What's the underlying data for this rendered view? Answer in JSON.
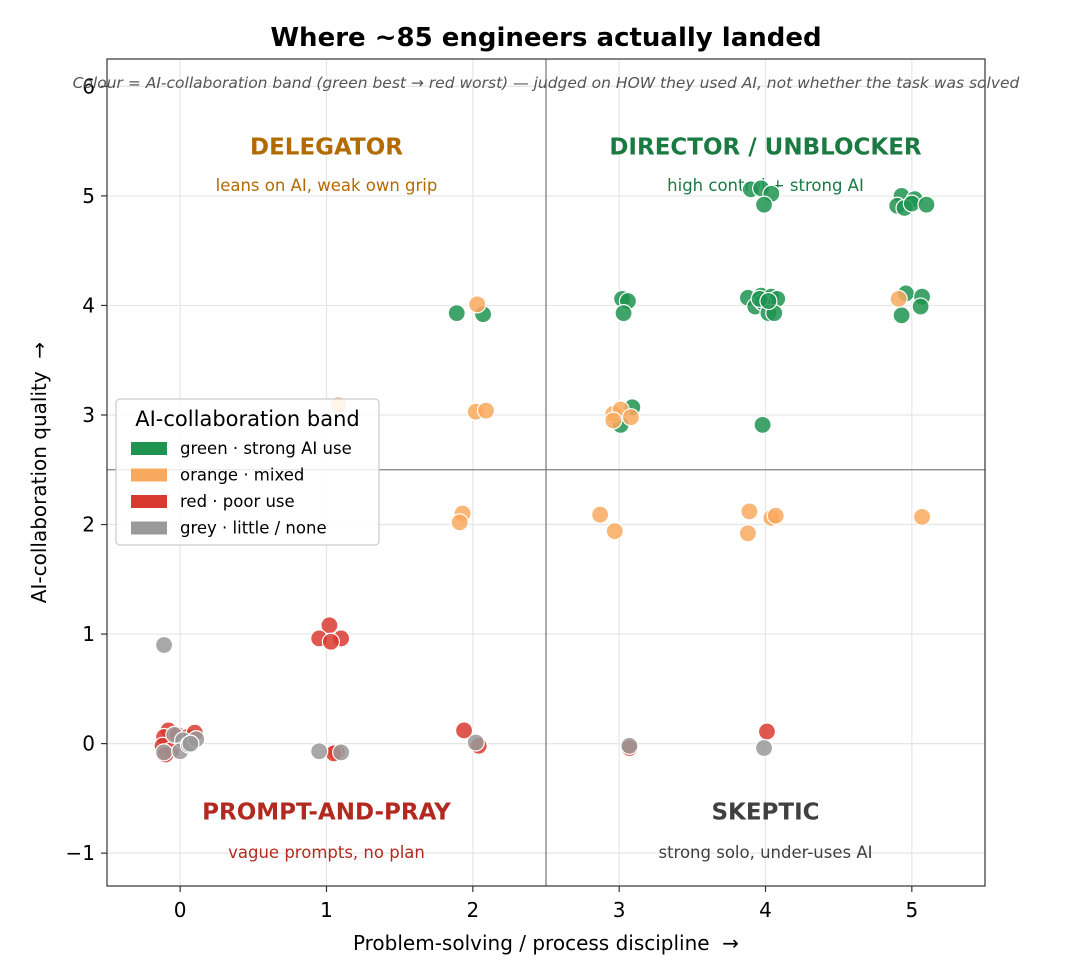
{
  "chart_data": {
    "type": "scatter",
    "title": "Where ~85 engineers actually landed",
    "subtitle": "Colour = AI-collaboration band (green best → red worst) — judged on HOW they used AI, not whether the task was solved",
    "xlabel": "Problem-solving / process discipline  →",
    "ylabel": "AI-collaboration quality  →",
    "xlim": [
      -0.5,
      5.5
    ],
    "ylim": [
      -1.3,
      6.25
    ],
    "xticks": [
      "0",
      "1",
      "2",
      "3",
      "4",
      "5"
    ],
    "yticks": [
      "−1",
      "0",
      "1",
      "2",
      "3",
      "4",
      "5",
      "6"
    ],
    "grid": true,
    "dividers": {
      "x": 2.5,
      "y": 2.5
    },
    "quadrants": [
      {
        "id": "delegator",
        "title": "DELEGATOR",
        "subtitle": "leans on AI, weak own grip",
        "color": "#b36b00",
        "x": 1.0,
        "y": 5.45,
        "sub_y": 5.1
      },
      {
        "id": "director",
        "title": "DIRECTOR / UNBLOCKER",
        "subtitle": "high control + strong AI",
        "color": "#1a7a42",
        "x": 4.0,
        "y": 5.45,
        "sub_y": 5.1
      },
      {
        "id": "prompt-and-pray",
        "title": "PROMPT-AND-PRAY",
        "subtitle": "vague prompts, no plan",
        "color": "#b22a1f",
        "x": 1.0,
        "y": -0.62,
        "sub_y": -0.99
      },
      {
        "id": "skeptic",
        "title": "SKEPTIC",
        "subtitle": "strong solo, under-uses AI",
        "color": "#404040",
        "x": 4.0,
        "y": -0.62,
        "sub_y": -0.99
      }
    ],
    "legend": {
      "title": "AI-collaboration band",
      "placement": "center-left",
      "entries": [
        {
          "band": "green",
          "label": "green · strong AI use",
          "color": "#1e9450"
        },
        {
          "band": "orange",
          "label": "orange · mixed",
          "color": "#f9a95e"
        },
        {
          "band": "red",
          "label": "red · poor use",
          "color": "#d93a2f"
        },
        {
          "band": "grey",
          "label": "grey · little / none",
          "color": "#999999"
        }
      ]
    },
    "series": [
      {
        "band": "green",
        "color": "#1e9450",
        "points": [
          [
            1.89,
            3.93
          ],
          [
            2.07,
            3.92
          ],
          [
            3.02,
            4.06
          ],
          [
            3.06,
            4.04
          ],
          [
            3.03,
            3.93
          ],
          [
            3.09,
            3.07
          ],
          [
            3.01,
            2.91
          ],
          [
            3.9,
            5.06
          ],
          [
            3.97,
            5.07
          ],
          [
            4.04,
            5.02
          ],
          [
            3.99,
            4.92
          ],
          [
            3.88,
            4.07
          ],
          [
            3.93,
            3.99
          ],
          [
            3.97,
            4.09
          ],
          [
            4.04,
            4.08
          ],
          [
            4.08,
            4.06
          ],
          [
            3.98,
            4.03
          ],
          [
            4.02,
            3.93
          ],
          [
            4.06,
            3.93
          ],
          [
            3.96,
            4.06
          ],
          [
            4.02,
            4.04
          ],
          [
            3.98,
            2.91
          ],
          [
            4.93,
            5.0
          ],
          [
            5.02,
            4.97
          ],
          [
            4.9,
            4.91
          ],
          [
            4.95,
            4.89
          ],
          [
            5.0,
            4.93
          ],
          [
            5.1,
            4.92
          ],
          [
            4.96,
            4.11
          ],
          [
            5.07,
            4.08
          ],
          [
            5.06,
            3.99
          ],
          [
            4.93,
            3.91
          ]
        ]
      },
      {
        "band": "orange",
        "color": "#f9a95e",
        "points": [
          [
            2.03,
            4.01
          ],
          [
            1.08,
            3.09
          ],
          [
            2.02,
            3.03
          ],
          [
            2.09,
            3.04
          ],
          [
            1.93,
            2.1
          ],
          [
            1.91,
            2.02
          ],
          [
            2.96,
            3.01
          ],
          [
            3.01,
            3.05
          ],
          [
            3.08,
            2.98
          ],
          [
            2.96,
            2.95
          ],
          [
            4.91,
            4.06
          ],
          [
            2.87,
            2.09
          ],
          [
            2.97,
            1.94
          ],
          [
            3.89,
            2.12
          ],
          [
            4.04,
            2.06
          ],
          [
            4.07,
            2.08
          ],
          [
            3.88,
            1.92
          ],
          [
            5.07,
            2.07
          ]
        ]
      },
      {
        "band": "red",
        "color": "#d93a2f",
        "points": [
          [
            -0.08,
            0.12
          ],
          [
            -0.11,
            0.06
          ],
          [
            -0.02,
            0.08
          ],
          [
            -0.12,
            -0.02
          ],
          [
            -0.06,
            -0.06
          ],
          [
            0.02,
            0.02
          ],
          [
            0.05,
            0.06
          ],
          [
            0.1,
            0.1
          ],
          [
            -0.1,
            -0.1
          ],
          [
            1.02,
            1.08
          ],
          [
            0.95,
            0.96
          ],
          [
            1.1,
            0.96
          ],
          [
            1.03,
            0.93
          ],
          [
            1.07,
            -0.08
          ],
          [
            1.05,
            -0.09
          ],
          [
            1.94,
            0.12
          ],
          [
            2.04,
            -0.02
          ],
          [
            3.07,
            -0.04
          ],
          [
            4.01,
            0.11
          ]
        ]
      },
      {
        "band": "grey",
        "color": "#999999",
        "points": [
          [
            -0.11,
            0.9
          ],
          [
            -0.11,
            -0.08
          ],
          [
            -0.04,
            0.08
          ],
          [
            0.02,
            0.03
          ],
          [
            0.0,
            -0.07
          ],
          [
            0.06,
            -0.01
          ],
          [
            0.11,
            0.04
          ],
          [
            0.07,
            0.0
          ],
          [
            0.95,
            -0.07
          ],
          [
            1.1,
            -0.08
          ],
          [
            2.02,
            0.01
          ],
          [
            3.07,
            -0.02
          ],
          [
            3.99,
            -0.04
          ]
        ]
      }
    ]
  }
}
